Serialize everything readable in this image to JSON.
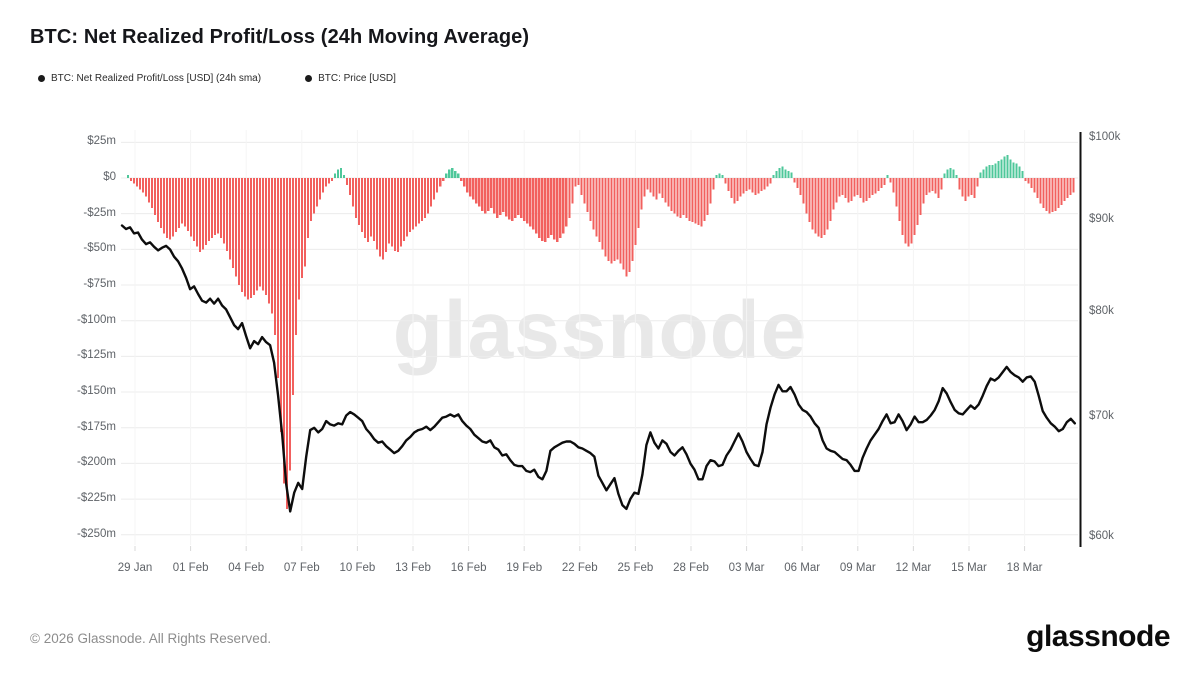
{
  "page": {
    "title": "BTC: Net Realized Profit/Loss (24h Moving Average)",
    "watermark": "glassnode",
    "footer": {
      "copyright": "© 2026 Glassnode. All Rights Reserved.",
      "brand": "glassnode"
    }
  },
  "legend": {
    "items": [
      {
        "label": "BTC: Net Realized Profit/Loss [USD] (24h sma)"
      },
      {
        "label": "BTC: Price [USD]"
      }
    ]
  },
  "colors": {
    "loss_bar": "#f2605e",
    "profit_bar": "#4ec79a",
    "price_line": "#0d0d0d",
    "grid_h": "#ececec",
    "grid_v": "#f4f4f4",
    "tick": "#d8d8d8",
    "axis_text": "#5f6368",
    "right_axis_line": "#121212",
    "watermark": "#e8e8e8"
  },
  "chart_data": {
    "type": "combo_bar_line",
    "title": "BTC: Net Realized Profit/Loss (24h Moving Average)",
    "x_axis": {
      "unit": "date",
      "ticks": [
        {
          "day": 0,
          "label": "29 Jan"
        },
        {
          "day": 3,
          "label": "01 Feb"
        },
        {
          "day": 6,
          "label": "04 Feb"
        },
        {
          "day": 9,
          "label": "07 Feb"
        },
        {
          "day": 12,
          "label": "10 Feb"
        },
        {
          "day": 15,
          "label": "13 Feb"
        },
        {
          "day": 18,
          "label": "16 Feb"
        },
        {
          "day": 21,
          "label": "19 Feb"
        },
        {
          "day": 24,
          "label": "22 Feb"
        },
        {
          "day": 27,
          "label": "25 Feb"
        },
        {
          "day": 30,
          "label": "28 Feb"
        },
        {
          "day": 33,
          "label": "03 Mar"
        },
        {
          "day": 36,
          "label": "06 Mar"
        },
        {
          "day": 39,
          "label": "09 Mar"
        },
        {
          "day": 42,
          "label": "12 Mar"
        },
        {
          "day": 45,
          "label": "15 Mar"
        },
        {
          "day": 48,
          "label": "18 Mar"
        }
      ]
    },
    "left_axis": {
      "unit": "USD millions",
      "scale": "linear",
      "min": -250,
      "max": 25,
      "ticks": [
        {
          "value": 25,
          "label": "$25m"
        },
        {
          "value": 0,
          "label": "$0"
        },
        {
          "value": -25,
          "label": "-$25m"
        },
        {
          "value": -50,
          "label": "-$50m"
        },
        {
          "value": -75,
          "label": "-$75m"
        },
        {
          "value": -100,
          "label": "-$100m"
        },
        {
          "value": -125,
          "label": "-$125m"
        },
        {
          "value": -150,
          "label": "-$150m"
        },
        {
          "value": -175,
          "label": "-$175m"
        },
        {
          "value": -200,
          "label": "-$200m"
        },
        {
          "value": -225,
          "label": "-$225m"
        },
        {
          "value": -250,
          "label": "-$250m"
        }
      ]
    },
    "right_axis": {
      "unit": "USD",
      "scale": "log",
      "min": 60000,
      "max": 100000,
      "ticks": [
        {
          "value": 100000,
          "label": "$100k"
        },
        {
          "value": 90000,
          "label": "$90k"
        },
        {
          "value": 80000,
          "label": "$80k"
        },
        {
          "value": 70000,
          "label": "$70k"
        },
        {
          "value": 60000,
          "label": "$60k"
        }
      ]
    },
    "series": [
      {
        "name": "BTC: Net Realized Profit/Loss [USD] (24h sma)",
        "type": "bar",
        "axis": "left",
        "unit": "million USD",
        "start_day": -0.38,
        "step_days": 0.162,
        "values": [
          2,
          -2,
          -4,
          -6,
          -8,
          -10,
          -13,
          -17,
          -21,
          -26,
          -31,
          -35,
          -39,
          -42,
          -43,
          -41,
          -38,
          -35,
          -32,
          -34,
          -37,
          -41,
          -44,
          -48,
          -52,
          -50,
          -47,
          -44,
          -42,
          -40,
          -39,
          -42,
          -46,
          -51,
          -57,
          -63,
          -69,
          -75,
          -80,
          -83,
          -85,
          -84,
          -82,
          -79,
          -76,
          -79,
          -82,
          -88,
          -95,
          -110,
          -140,
          -178,
          -214,
          -232,
          -205,
          -152,
          -110,
          -85,
          -70,
          -62,
          -42,
          -30,
          -25,
          -20,
          -15,
          -10,
          -6,
          -4,
          -2,
          3,
          6,
          7,
          2,
          -5,
          -12,
          -20,
          -28,
          -33,
          -38,
          -42,
          -45,
          -41,
          -44,
          -50,
          -55,
          -57,
          -52,
          -46,
          -48,
          -51,
          -52,
          -48,
          -44,
          -41,
          -38,
          -36,
          -34,
          -32,
          -30,
          -28,
          -25,
          -20,
          -15,
          -10,
          -6,
          -2,
          3,
          6,
          7,
          5,
          3,
          -2,
          -6,
          -10,
          -13,
          -15,
          -18,
          -20,
          -23,
          -25,
          -23,
          -21,
          -25,
          -28,
          -26,
          -24,
          -27,
          -29,
          -30,
          -28,
          -26,
          -28,
          -30,
          -32,
          -34,
          -36,
          -39,
          -42,
          -44,
          -45,
          -42,
          -40,
          -43,
          -45,
          -42,
          -39,
          -34,
          -28,
          -18,
          -6,
          -5,
          -12,
          -18,
          -24,
          -30,
          -36,
          -41,
          -45,
          -50,
          -55,
          -58,
          -60,
          -58,
          -57,
          -60,
          -64,
          -69,
          -66,
          -58,
          -47,
          -35,
          -22,
          -13,
          -8,
          -10,
          -13,
          -15,
          -11,
          -14,
          -17,
          -20,
          -23,
          -25,
          -27,
          -28,
          -26,
          -28,
          -30,
          -31,
          -32,
          -33,
          -34,
          -30,
          -26,
          -18,
          -8,
          2,
          3,
          2,
          -4,
          -9,
          -14,
          -18,
          -16,
          -13,
          -11,
          -9,
          -8,
          -10,
          -12,
          -11,
          -9,
          -8,
          -6,
          -4,
          2,
          5,
          7,
          8,
          6,
          5,
          4,
          -3,
          -7,
          -12,
          -18,
          -25,
          -31,
          -36,
          -39,
          -41,
          -42,
          -40,
          -36,
          -30,
          -22,
          -17,
          -13,
          -12,
          -14,
          -17,
          -16,
          -13,
          -12,
          -14,
          -17,
          -16,
          -14,
          -12,
          -11,
          -9,
          -7,
          -5,
          2,
          -3,
          -10,
          -20,
          -30,
          -40,
          -46,
          -48,
          -46,
          -40,
          -33,
          -26,
          -18,
          -12,
          -10,
          -9,
          -11,
          -14,
          -8,
          3,
          6,
          7,
          6,
          2,
          -8,
          -13,
          -16,
          -13,
          -12,
          -14,
          -6,
          4,
          6,
          8,
          9,
          9,
          10,
          12,
          13,
          15,
          16,
          13,
          11,
          10,
          8,
          5,
          -2,
          -4,
          -7,
          -10,
          -14,
          -18,
          -21,
          -23,
          -25,
          -24,
          -23,
          -21,
          -19,
          -16,
          -14,
          -12,
          -10
        ]
      },
      {
        "name": "BTC: Price [USD]",
        "type": "line",
        "axis": "right",
        "unit": "thousand USD",
        "start_day": -0.7,
        "step_days": 0.216,
        "values": [
          89.4,
          89.0,
          89.2,
          88.5,
          88.6,
          87.8,
          87.3,
          87.5,
          87.0,
          86.6,
          86.9,
          87.1,
          86.7,
          85.9,
          85.4,
          84.6,
          83.6,
          82.4,
          82.7,
          81.9,
          81.2,
          81.0,
          81.4,
          80.9,
          81.4,
          80.7,
          80.3,
          79.5,
          78.7,
          78.3,
          78.9,
          77.6,
          76.4,
          77.1,
          76.8,
          77.5,
          77.0,
          76.7,
          75.0,
          71.9,
          68.4,
          64.2,
          62.0,
          63.5,
          64.3,
          63.8,
          66.5,
          68.8,
          69.0,
          68.6,
          68.9,
          69.6,
          69.3,
          69.2,
          69.4,
          69.3,
          70.1,
          70.4,
          70.2,
          69.9,
          69.6,
          68.9,
          68.5,
          68.0,
          67.7,
          67.8,
          67.4,
          67.1,
          66.8,
          67.0,
          67.4,
          67.9,
          68.2,
          68.6,
          68.8,
          68.9,
          69.1,
          68.8,
          69.1,
          69.5,
          69.9,
          70.0,
          70.2,
          70.0,
          70.2,
          69.6,
          69.2,
          68.9,
          68.4,
          68.1,
          67.8,
          67.7,
          67.9,
          67.3,
          67.1,
          66.6,
          66.7,
          66.2,
          65.8,
          65.7,
          65.7,
          65.3,
          65.2,
          65.4,
          64.8,
          64.6,
          65.3,
          67.0,
          67.3,
          67.5,
          67.7,
          67.8,
          67.8,
          67.6,
          67.3,
          67.2,
          67.0,
          66.8,
          66.5,
          64.9,
          64.3,
          63.7,
          64.2,
          64.7,
          63.4,
          62.5,
          62.2,
          63.0,
          63.5,
          63.4,
          65.0,
          67.5,
          68.6,
          67.7,
          67.2,
          67.9,
          67.6,
          66.9,
          66.6,
          67.0,
          67.3,
          66.7,
          65.9,
          65.4,
          64.6,
          64.6,
          65.7,
          66.2,
          66.1,
          65.7,
          65.8,
          66.6,
          67.1,
          67.8,
          68.5,
          67.8,
          66.9,
          66.3,
          65.8,
          65.7,
          66.9,
          69.3,
          70.8,
          72.0,
          72.9,
          72.3,
          72.3,
          72.7,
          72.0,
          71.1,
          70.6,
          70.4,
          70.0,
          69.4,
          69.0,
          67.9,
          67.2,
          67.0,
          66.9,
          66.6,
          66.3,
          66.2,
          65.8,
          65.3,
          65.3,
          66.4,
          67.2,
          67.9,
          68.4,
          68.9,
          69.6,
          70.2,
          69.4,
          69.5,
          70.2,
          69.6,
          68.8,
          69.3,
          70.0,
          69.5,
          69.5,
          69.7,
          70.1,
          70.6,
          71.4,
          72.6,
          72.1,
          71.3,
          70.6,
          70.3,
          70.2,
          70.6,
          71.0,
          70.7,
          71.1,
          71.9,
          72.8,
          73.5,
          73.3,
          73.6,
          74.1,
          74.6,
          74.1,
          73.8,
          73.6,
          73.2,
          73.6,
          73.7,
          73.2,
          71.9,
          70.5,
          69.9,
          69.4,
          69.1,
          68.7,
          68.9,
          69.5,
          69.8,
          69.4
        ]
      }
    ]
  }
}
